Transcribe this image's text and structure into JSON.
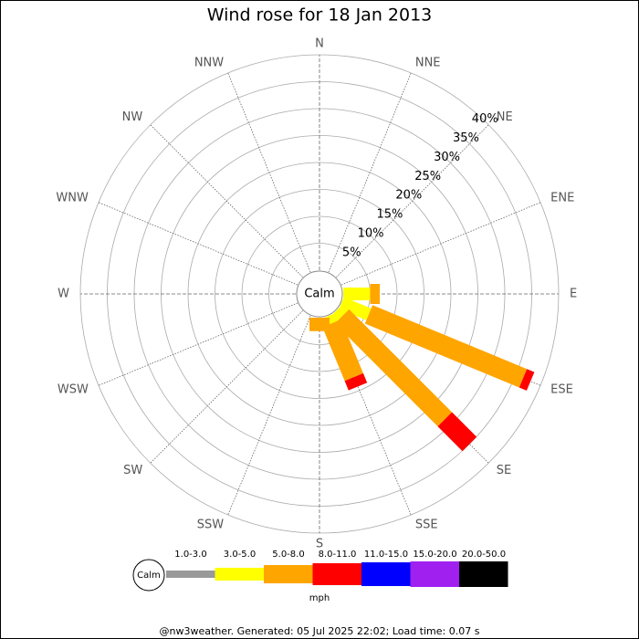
{
  "chart_data": {
    "type": "windrose",
    "title": "Wind rose for 18 Jan 2013",
    "calm_label": "Calm",
    "categories": [
      "N",
      "NNE",
      "NE",
      "ENE",
      "E",
      "ESE",
      "SE",
      "SSE",
      "S",
      "SSW",
      "SW",
      "WSW",
      "W",
      "WNW",
      "NW",
      "NNW"
    ],
    "series": [
      {
        "name": "1.0-3.0",
        "color": "#999999",
        "values": [
          0,
          0,
          0,
          0,
          0,
          0,
          0,
          0,
          0,
          0,
          0,
          0,
          0,
          0,
          0,
          0
        ]
      },
      {
        "name": "3.0-5.0",
        "color": "#ffff00",
        "values": [
          0,
          0,
          0,
          0,
          5,
          5.5,
          1.5,
          1.5,
          0,
          0,
          0,
          0,
          0,
          0,
          0,
          0
        ]
      },
      {
        "name": "5.0-8.0",
        "color": "#ffa500",
        "values": [
          0,
          0,
          0,
          0,
          1.8,
          31,
          27,
          10.8,
          2.5,
          0,
          0,
          0,
          0,
          0,
          0,
          0
        ]
      },
      {
        "name": "8.0-11.0",
        "color": "#ff0000",
        "values": [
          0,
          0,
          0,
          0,
          0,
          1.5,
          6.5,
          1.9,
          0,
          0,
          0,
          0,
          0,
          0,
          0,
          0
        ]
      },
      {
        "name": "11.0-15.0",
        "color": "#0000ff",
        "values": [
          0,
          0,
          0,
          0,
          0,
          0,
          0,
          0,
          0,
          0,
          0,
          0,
          0,
          0,
          0,
          0
        ]
      },
      {
        "name": "15.0-20.0",
        "color": "#a020f0",
        "values": [
          0,
          0,
          0,
          0,
          0,
          0,
          0,
          0,
          0,
          0,
          0,
          0,
          0,
          0,
          0,
          0
        ]
      },
      {
        "name": "20.0-50.0",
        "color": "#000000",
        "values": [
          0,
          0,
          0,
          0,
          0,
          0,
          0,
          0,
          0,
          0,
          0,
          0,
          0,
          0,
          0,
          0
        ]
      }
    ],
    "rlim": [
      0,
      40
    ],
    "rticks": [
      {
        "value": 5,
        "label": "5%"
      },
      {
        "value": 10,
        "label": "10%"
      },
      {
        "value": 15,
        "label": "15%"
      },
      {
        "value": 20,
        "label": "20%"
      },
      {
        "value": 25,
        "label": "25%"
      },
      {
        "value": 30,
        "label": "30%"
      },
      {
        "value": 35,
        "label": "35%"
      },
      {
        "value": 40,
        "label": "40%"
      }
    ],
    "legend_unit": "mph",
    "footer": "@nw3weather. Generated: 05 Jul 2025 22:02; Load time: 0.07 s"
  }
}
